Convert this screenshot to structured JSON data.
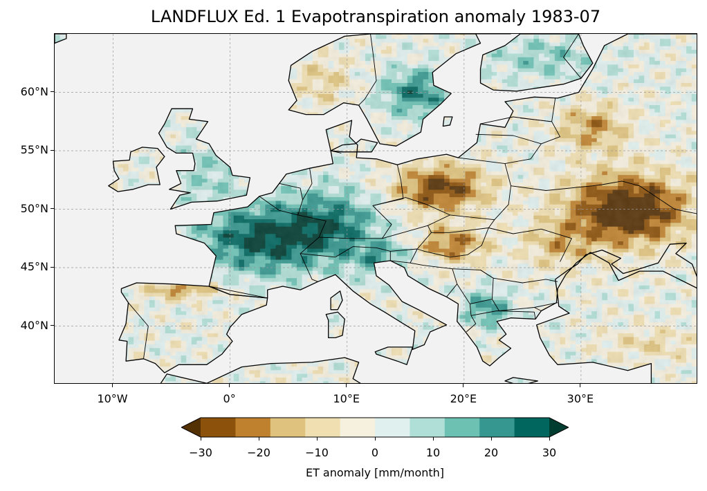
{
  "title": "LANDFLUX Ed. 1 Evapotranspiration anomaly 1983-07",
  "map": {
    "lon_range": [
      -15,
      40
    ],
    "lat_range": [
      35,
      65
    ],
    "lat_ticks": [
      {
        "value": 40,
        "label": "40°N"
      },
      {
        "value": 45,
        "label": "45°N"
      },
      {
        "value": 50,
        "label": "50°N"
      },
      {
        "value": 55,
        "label": "55°N"
      },
      {
        "value": 60,
        "label": "60°N"
      }
    ],
    "lon_ticks": [
      {
        "value": -10,
        "label": "10°W"
      },
      {
        "value": 0,
        "label": "0°"
      },
      {
        "value": 10,
        "label": "10°E"
      },
      {
        "value": 20,
        "label": "20°E"
      },
      {
        "value": 30,
        "label": "30°E"
      }
    ],
    "gridlines": true,
    "ocean_color": "#f2f2f2",
    "coastline_color": "#000000"
  },
  "colorbar": {
    "label": "ET anomaly [mm/month]",
    "levels": [
      -30,
      -25,
      -20,
      -15,
      -10,
      -5,
      0,
      5,
      10,
      15,
      20,
      25,
      30
    ],
    "tick_labels": [
      "−30",
      "−20",
      "−10",
      "0",
      "10",
      "20",
      "30"
    ],
    "tick_values": [
      -30,
      -20,
      -10,
      0,
      10,
      20,
      30
    ],
    "colors": [
      "#543005",
      "#8c510a",
      "#bf812d",
      "#dfc27d",
      "#f0dfb0",
      "#f6f0df",
      "#e0f0ee",
      "#b0dfd7",
      "#6cc1b3",
      "#35978f",
      "#01665e",
      "#003c30"
    ],
    "extend": "both"
  }
}
